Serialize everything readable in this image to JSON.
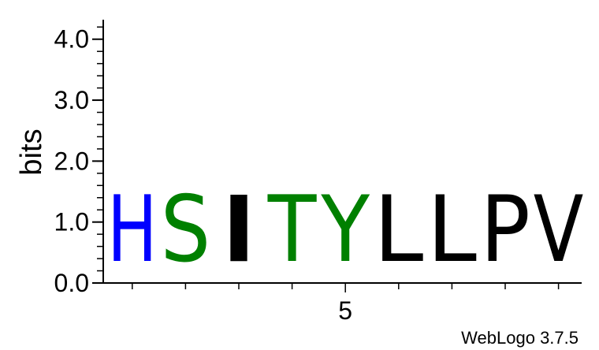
{
  "chart_data": {
    "type": "sequence-logo",
    "ylabel": "bits",
    "ylim": [
      0,
      4.32
    ],
    "y_ticks": [
      {
        "value": 0,
        "label": "0.0"
      },
      {
        "value": 1,
        "label": "1.0"
      },
      {
        "value": 2,
        "label": "2.0"
      },
      {
        "value": 3,
        "label": "3.0"
      },
      {
        "value": 4,
        "label": "4.0"
      }
    ],
    "x_ticks": [
      {
        "position": 5,
        "label": "5"
      }
    ],
    "positions": [
      {
        "index": 1,
        "letter": "H",
        "bits": 1.75,
        "color": "#0000ff"
      },
      {
        "index": 2,
        "letter": "S",
        "bits": 1.75,
        "color": "#008000"
      },
      {
        "index": 3,
        "letter": "I",
        "bits": 1.75,
        "color": "#000000"
      },
      {
        "index": 4,
        "letter": "T",
        "bits": 1.75,
        "color": "#008000"
      },
      {
        "index": 5,
        "letter": "Y",
        "bits": 1.75,
        "color": "#008000"
      },
      {
        "index": 6,
        "letter": "L",
        "bits": 1.75,
        "color": "#000000"
      },
      {
        "index": 7,
        "letter": "L",
        "bits": 1.75,
        "color": "#000000"
      },
      {
        "index": 8,
        "letter": "P",
        "bits": 1.75,
        "color": "#000000"
      },
      {
        "index": 9,
        "letter": "V",
        "bits": 1.75,
        "color": "#000000"
      }
    ]
  },
  "credit": "WebLogo 3.7.5"
}
